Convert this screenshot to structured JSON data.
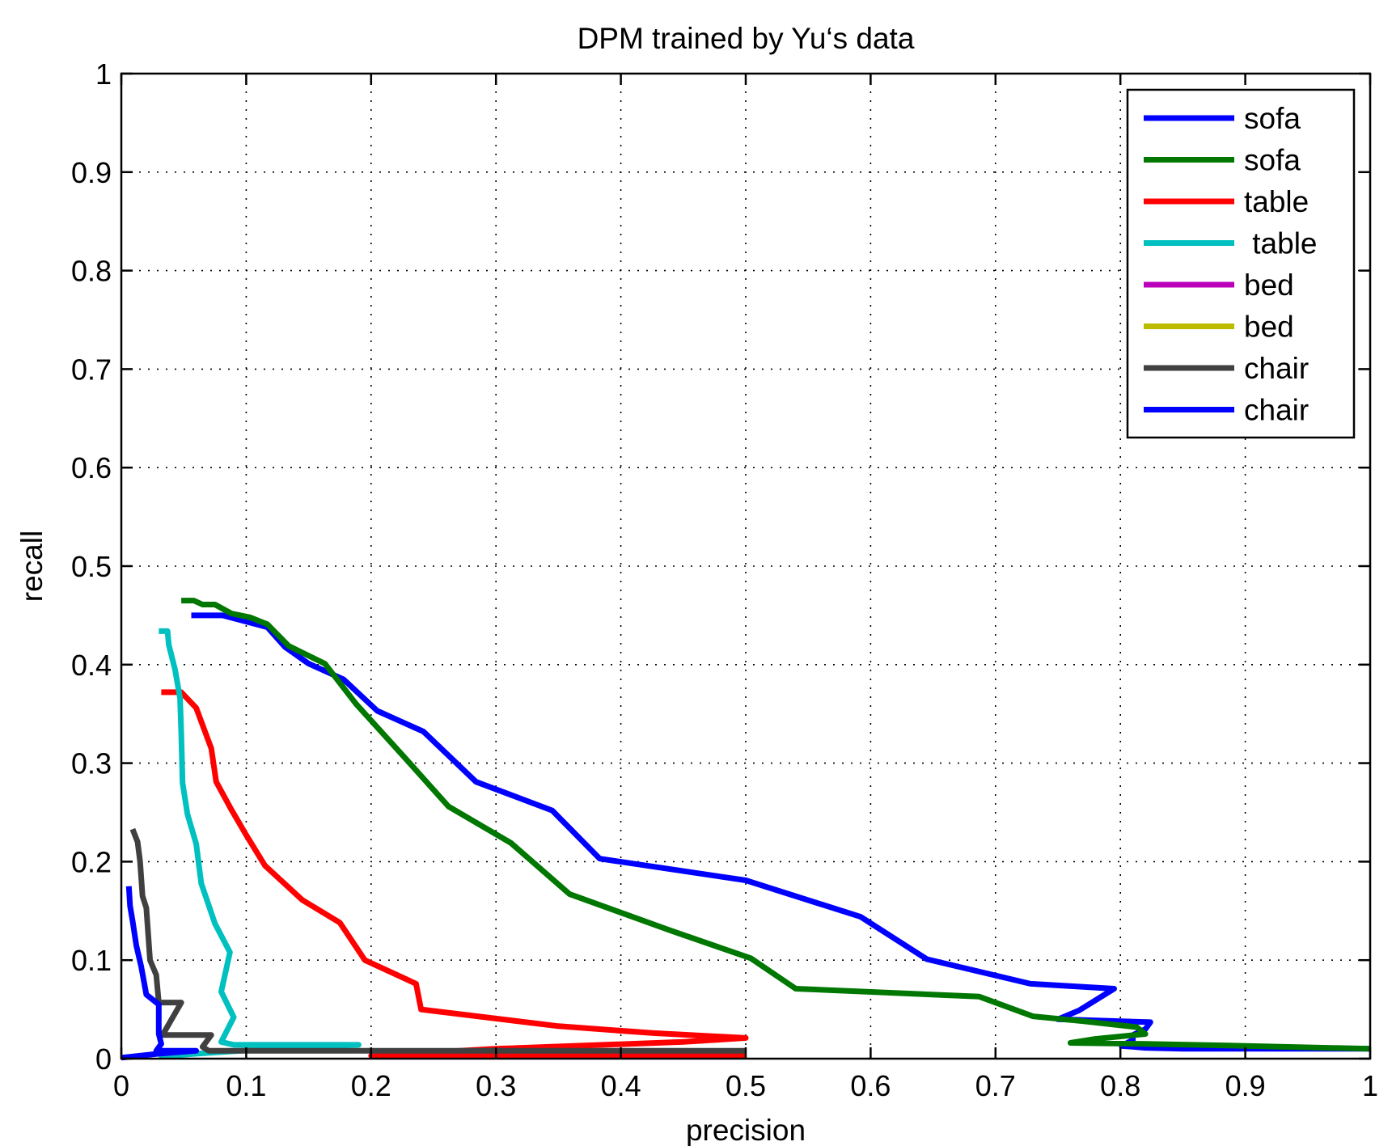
{
  "chart_data": {
    "type": "line",
    "title": "DPM trained by Yu‘s data",
    "xlabel": "precision",
    "ylabel": "recall",
    "xlim": [
      0,
      1
    ],
    "ylim": [
      0,
      1
    ],
    "grid": true,
    "legend_position": "top-right",
    "xticks": [
      "0",
      "0.1",
      "0.2",
      "0.3",
      "0.4",
      "0.5",
      "0.6",
      "0.7",
      "0.8",
      "0.9",
      "1"
    ],
    "yticks": [
      "0",
      "0.1",
      "0.2",
      "0.3",
      "0.4",
      "0.5",
      "0.6",
      "0.7",
      "0.8",
      "0.9",
      "1"
    ],
    "series": [
      {
        "name": "sofa",
        "color": "#0000ff",
        "points": [
          [
            0.056,
            0.45
          ],
          [
            0.081,
            0.45
          ],
          [
            0.093,
            0.446
          ],
          [
            0.117,
            0.438
          ],
          [
            0.131,
            0.418
          ],
          [
            0.15,
            0.401
          ],
          [
            0.178,
            0.385
          ],
          [
            0.205,
            0.353
          ],
          [
            0.242,
            0.332
          ],
          [
            0.284,
            0.281
          ],
          [
            0.345,
            0.252
          ],
          [
            0.383,
            0.203
          ],
          [
            0.5,
            0.181
          ],
          [
            0.592,
            0.144
          ],
          [
            0.645,
            0.101
          ],
          [
            0.728,
            0.076
          ],
          [
            0.795,
            0.071
          ],
          [
            0.767,
            0.049
          ],
          [
            0.75,
            0.04
          ],
          [
            0.824,
            0.037
          ],
          [
            0.82,
            0.03
          ],
          [
            0.81,
            0.024
          ],
          [
            0.81,
            0.019
          ],
          [
            0.801,
            0.013
          ],
          [
            0.82,
            0.011
          ],
          [
            0.85,
            0.01
          ],
          [
            1.0,
            0.01
          ]
        ]
      },
      {
        "name": "sofa",
        "color": "#007700",
        "points": [
          [
            0.048,
            0.465
          ],
          [
            0.058,
            0.465
          ],
          [
            0.065,
            0.461
          ],
          [
            0.075,
            0.461
          ],
          [
            0.088,
            0.452
          ],
          [
            0.103,
            0.448
          ],
          [
            0.117,
            0.441
          ],
          [
            0.134,
            0.419
          ],
          [
            0.163,
            0.401
          ],
          [
            0.188,
            0.36
          ],
          [
            0.226,
            0.307
          ],
          [
            0.262,
            0.256
          ],
          [
            0.312,
            0.219
          ],
          [
            0.359,
            0.167
          ],
          [
            0.44,
            0.13
          ],
          [
            0.504,
            0.102
          ],
          [
            0.54,
            0.071
          ],
          [
            0.687,
            0.063
          ],
          [
            0.73,
            0.043
          ],
          [
            0.77,
            0.038
          ],
          [
            0.813,
            0.032
          ],
          [
            0.82,
            0.025
          ],
          [
            0.78,
            0.02
          ],
          [
            0.76,
            0.016
          ],
          [
            0.82,
            0.015
          ],
          [
            0.9,
            0.013
          ],
          [
            1.0,
            0.01
          ]
        ]
      },
      {
        "name": "table",
        "color": "#ff0000",
        "points": [
          [
            0.032,
            0.372
          ],
          [
            0.048,
            0.372
          ],
          [
            0.06,
            0.356
          ],
          [
            0.072,
            0.315
          ],
          [
            0.076,
            0.281
          ],
          [
            0.088,
            0.253
          ],
          [
            0.1,
            0.227
          ],
          [
            0.115,
            0.196
          ],
          [
            0.145,
            0.161
          ],
          [
            0.175,
            0.138
          ],
          [
            0.195,
            0.1
          ],
          [
            0.236,
            0.076
          ],
          [
            0.24,
            0.05
          ],
          [
            0.35,
            0.033
          ],
          [
            0.425,
            0.026
          ],
          [
            0.5,
            0.021
          ],
          [
            0.45,
            0.017
          ],
          [
            0.3,
            0.01
          ],
          [
            0.2,
            0.003
          ],
          [
            0.5,
            0.003
          ]
        ]
      },
      {
        "name": " table",
        "color": "#00c0c0",
        "points": [
          [
            0.03,
            0.434
          ],
          [
            0.037,
            0.434
          ],
          [
            0.038,
            0.42
          ],
          [
            0.043,
            0.395
          ],
          [
            0.047,
            0.366
          ],
          [
            0.048,
            0.33
          ],
          [
            0.049,
            0.28
          ],
          [
            0.053,
            0.248
          ],
          [
            0.06,
            0.218
          ],
          [
            0.064,
            0.178
          ],
          [
            0.075,
            0.137
          ],
          [
            0.087,
            0.108
          ],
          [
            0.08,
            0.068
          ],
          [
            0.09,
            0.042
          ],
          [
            0.08,
            0.017
          ],
          [
            0.09,
            0.014
          ],
          [
            0.19,
            0.014
          ],
          [
            0.12,
            0.01
          ],
          [
            0.06,
            0.005
          ],
          [
            0.03,
            0.002
          ]
        ]
      },
      {
        "name": "bed",
        "color": "#bb00bb",
        "points": []
      },
      {
        "name": "bed",
        "color": "#bbbb00",
        "points": []
      },
      {
        "name": "chair",
        "color": "#404040",
        "points": [
          [
            0.009,
            0.233
          ],
          [
            0.013,
            0.22
          ],
          [
            0.015,
            0.2
          ],
          [
            0.017,
            0.165
          ],
          [
            0.02,
            0.153
          ],
          [
            0.023,
            0.1
          ],
          [
            0.028,
            0.085
          ],
          [
            0.03,
            0.057
          ],
          [
            0.048,
            0.057
          ],
          [
            0.033,
            0.024
          ],
          [
            0.072,
            0.024
          ],
          [
            0.065,
            0.012
          ],
          [
            0.07,
            0.008
          ],
          [
            0.3,
            0.008
          ],
          [
            0.5,
            0.008
          ]
        ]
      },
      {
        "name": "chair",
        "color": "#0000ff",
        "points": [
          [
            0.006,
            0.175
          ],
          [
            0.007,
            0.155
          ],
          [
            0.009,
            0.14
          ],
          [
            0.012,
            0.115
          ],
          [
            0.016,
            0.093
          ],
          [
            0.02,
            0.065
          ],
          [
            0.03,
            0.055
          ],
          [
            0.03,
            0.025
          ],
          [
            0.032,
            0.015
          ],
          [
            0.028,
            0.008
          ],
          [
            0.06,
            0.008
          ],
          [
            0.03,
            0.005
          ],
          [
            0.0,
            0.001
          ]
        ]
      }
    ]
  }
}
